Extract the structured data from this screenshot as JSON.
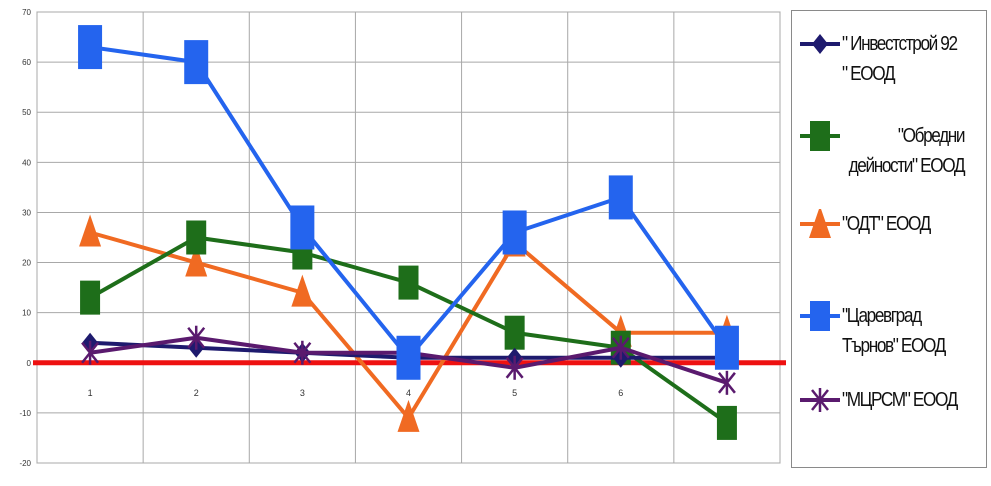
{
  "chart_data": {
    "type": "line",
    "categories": [
      "1",
      "2",
      "3",
      "4",
      "5",
      "6",
      ""
    ],
    "ylim": [
      -20,
      70
    ],
    "ytick_labels": [
      "-20",
      "-10",
      "0",
      "10",
      "20",
      "30",
      "40",
      "50",
      "60",
      "70"
    ],
    "grid": true,
    "legend_position": "right",
    "series": [
      {
        "name": "\" Инвестстрой 92 \" ЕООД",
        "color": "#1e1a6e",
        "marker": "diamond",
        "values": [
          4,
          3,
          2,
          1,
          1,
          1,
          1
        ]
      },
      {
        "name": "\"Обредни дейности\" ЕООД",
        "color": "#1e6e1a",
        "marker": "square",
        "values": [
          13,
          25,
          22,
          16,
          6,
          3,
          -12
        ]
      },
      {
        "name": "\"ОДТ\" ЕООД",
        "color": "#f06a22",
        "marker": "triangle",
        "values": [
          26,
          20,
          14,
          -11,
          24,
          6,
          6
        ]
      },
      {
        "name": "\"Царевград Търнов\" ЕООД",
        "color": "#2464ee",
        "marker": "square-large",
        "values": [
          63,
          60,
          27,
          1,
          26,
          33,
          3
        ]
      },
      {
        "name": "\"МЦРСМ\" ЕООД",
        "color": "#5a1a6e",
        "marker": "star",
        "values": [
          2,
          5,
          2,
          2,
          -1,
          3,
          -4
        ]
      }
    ],
    "baseline_color": "#ee1111"
  }
}
